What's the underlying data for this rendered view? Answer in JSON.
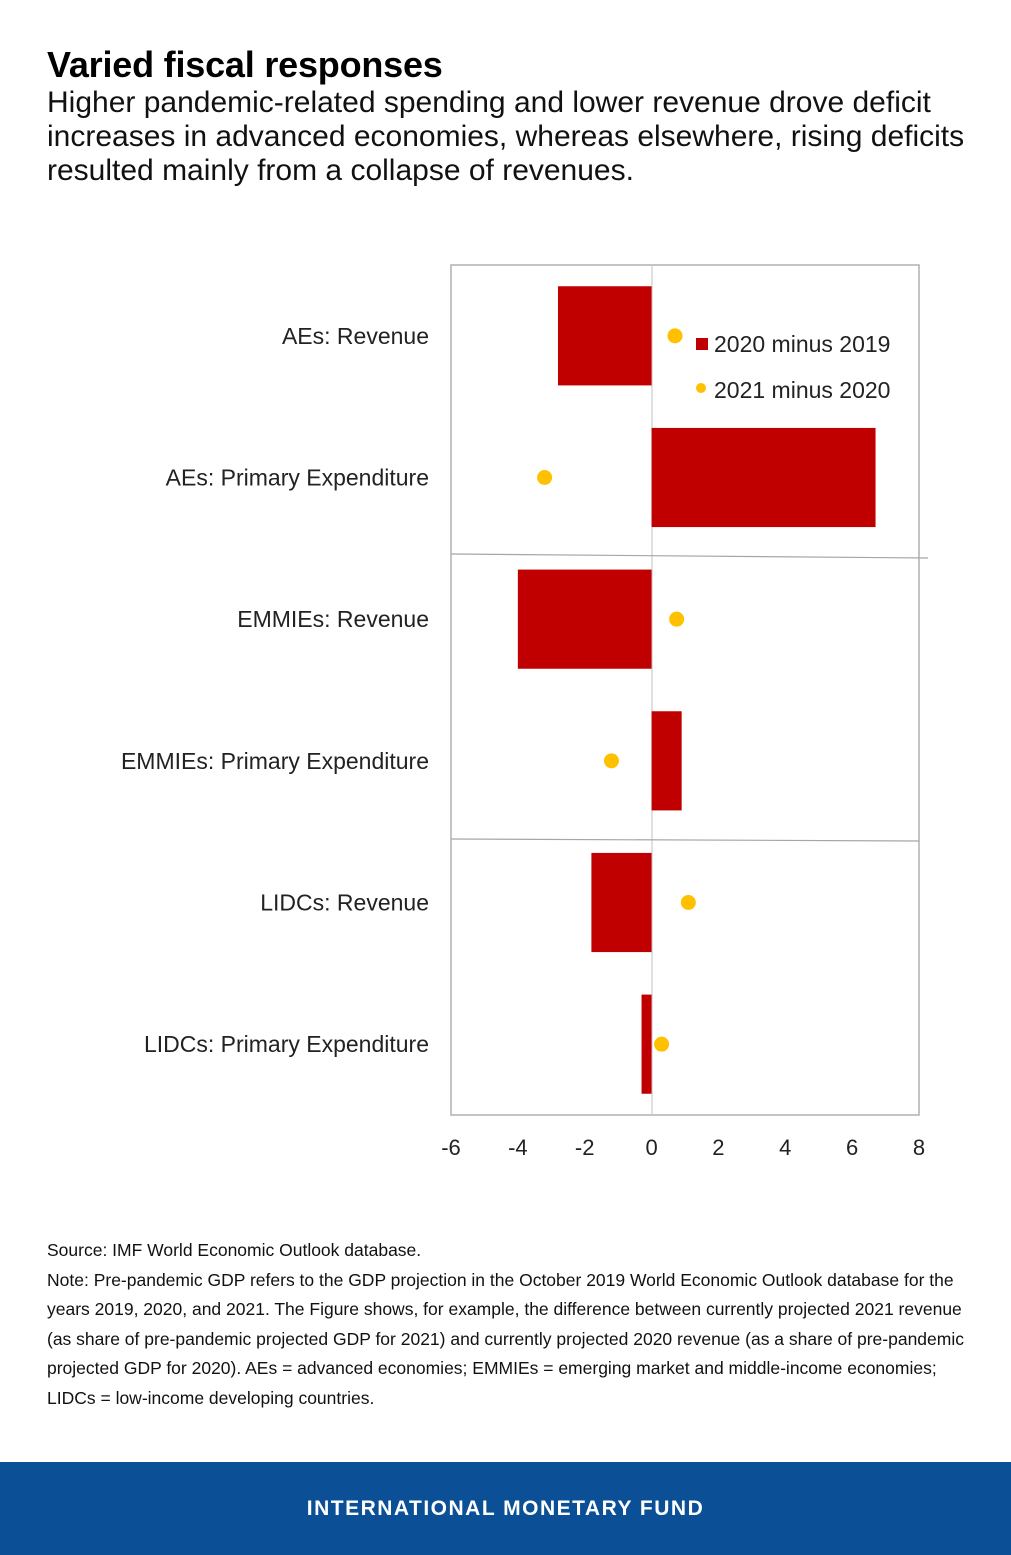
{
  "header": {
    "title": "Varied fiscal responses",
    "subtitle": "Higher pandemic-related spending and lower revenue drove deficit increases in advanced economies, whereas elsewhere, rising deficits resulted mainly from a collapse of revenues."
  },
  "chart_data": {
    "type": "bar",
    "orientation": "horizontal",
    "categories": [
      "AEs: Revenue",
      "AEs: Primary Expenditure",
      "EMMIEs: Revenue",
      "EMMIEs: Primary Expenditure",
      "LIDCs: Revenue",
      "LIDCs: Primary Expenditure"
    ],
    "series": [
      {
        "name": "2020 minus 2019",
        "mark": "bar",
        "color": "#c00000",
        "values": [
          -2.8,
          6.7,
          -4.0,
          0.9,
          -1.8,
          -0.3
        ]
      },
      {
        "name": "2021 minus 2020",
        "mark": "dot",
        "color": "#ffc000",
        "values": [
          0.7,
          -3.2,
          0.75,
          -1.2,
          1.1,
          0.3
        ]
      }
    ],
    "xlim": [
      -6,
      8
    ],
    "xticks": [
      "-6",
      "-4",
      "-2",
      "0",
      "2",
      "4",
      "6",
      "8"
    ],
    "xlabel": "",
    "ylabel": "",
    "legend_position": "top-right",
    "grid": false
  },
  "notes": {
    "source": "Source: IMF World Economic Outlook database.",
    "note": "Note: Pre-pandemic GDP refers to the GDP projection in the October 2019 World Economic Outlook database for the years 2019, 2020, and 2021. The Figure shows, for example, the difference between currently projected 2021 revenue (as share of pre-pandemic projected GDP for 2021) and currently projected 2020 revenue (as a share of pre-pandemic projected GDP for 2020). AEs = advanced economies; EMMIEs = emerging market and middle-income economies; LIDCs = low-income developing countries."
  },
  "footer": {
    "label": "INTERNATIONAL MONETARY FUND"
  }
}
